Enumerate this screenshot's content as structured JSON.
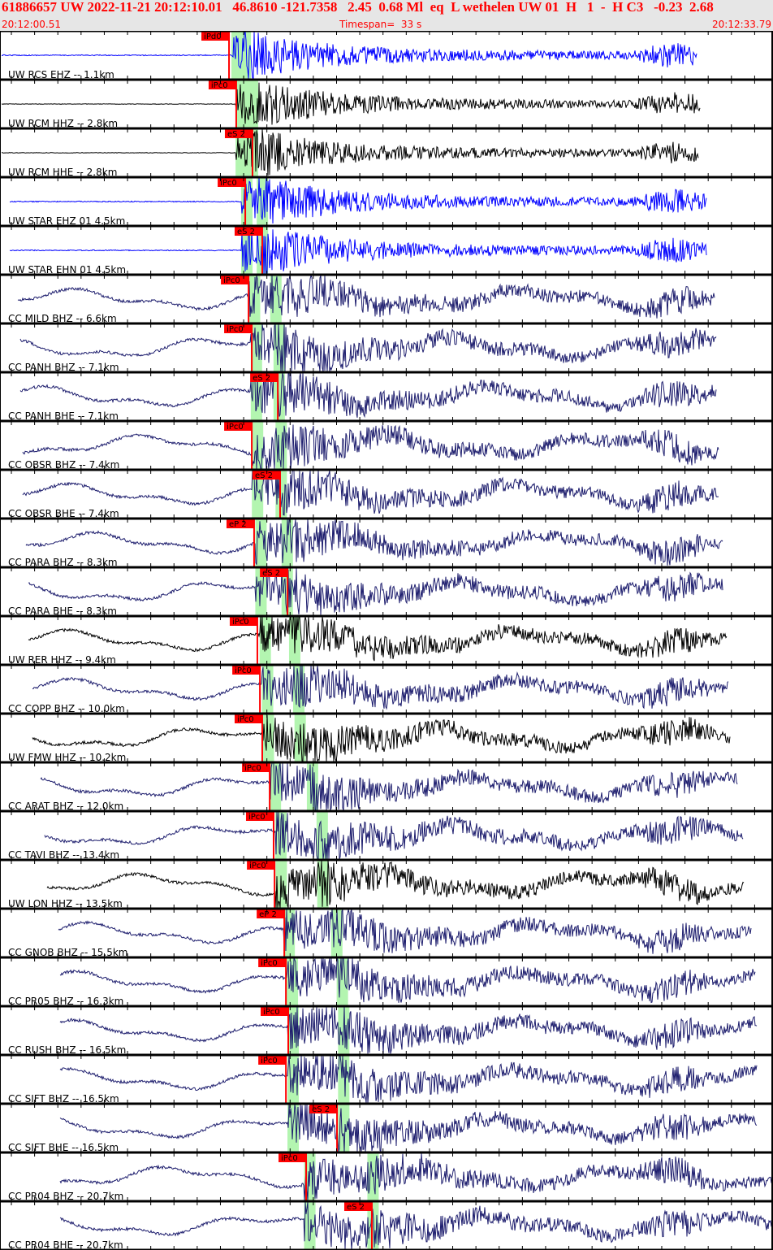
{
  "header": {
    "title": "61886657 UW 2022-11-21 20:12:10.01   46.8610 -121.7358   2.45  0.68 Ml  eq  L wethelen UW 01  H   1  -  H C3   -0.23  2.68",
    "start_time": "20:12:00.51",
    "timespan": "Timespan=  33 s",
    "end_time": "20:12:33.79"
  },
  "event": {
    "origin_time": "20:12:10.01",
    "depth_km": 2.45
  },
  "colors": {
    "pick": "#ff0000",
    "window": "#b3f5b0",
    "blue": "#0000ff",
    "black": "#000000",
    "navy": "#1e1e6e",
    "header_bg": "#e6e6e6"
  },
  "traces": [
    {
      "label": "UW RCS EHZ -- 1.1km",
      "dist": 1.1,
      "color": "blue",
      "pick": "iPd0",
      "pick_time": "20:12:10.37"
    },
    {
      "label": "UW RCM HHZ -- 2.8km",
      "dist": 2.8,
      "color": "black",
      "pick": "iPc0",
      "pick_time": "20:12:10.68"
    },
    {
      "label": "UW RCM HHE -- 2.8km",
      "dist": 2.8,
      "color": "black",
      "pick": "eS 2",
      "pick_time": "20:12:11.38"
    },
    {
      "label": "UW STAR EHZ 01 4.5km",
      "dist": 4.5,
      "color": "blue",
      "pick": "iPc0",
      "pick_time": "20:12:11.07"
    },
    {
      "label": "UW STAR EHN 01 4.5km",
      "dist": 4.5,
      "color": "blue",
      "pick": "eS 2",
      "pick_time": "20:12:11.80"
    },
    {
      "label": "CC MILD BHZ -- 6.6km",
      "dist": 6.6,
      "color": "navy",
      "pick": "iPc0",
      "pick_time": "20:12:11.21"
    },
    {
      "label": "CC PANH BHZ -- 7.1km",
      "dist": 7.1,
      "color": "navy",
      "pick": "iPc0",
      "pick_time": "20:12:11.35"
    },
    {
      "label": "CC PANH BHE -- 7.1km",
      "dist": 7.1,
      "color": "navy",
      "pick": "eS 2",
      "pick_time": "20:12:12.47"
    },
    {
      "label": "CC OBSR BHZ -- 7.4km",
      "dist": 7.4,
      "color": "navy",
      "pick": "iPc0",
      "pick_time": "20:12:11.35"
    },
    {
      "label": "CC OBSR BHE -- 7.4km",
      "dist": 7.4,
      "color": "navy",
      "pick": "eS 2",
      "pick_time": "20:12:12.57"
    },
    {
      "label": "CC PARA BHZ -- 8.3km",
      "dist": 8.3,
      "color": "navy",
      "pick": "eP 2",
      "pick_time": "20:12:11.45"
    },
    {
      "label": "CC PARA BHE -- 8.3km",
      "dist": 8.3,
      "color": "navy",
      "pick": "eS 2",
      "pick_time": "20:12:12.89"
    },
    {
      "label": "UW RER HHZ -- 9.4km",
      "dist": 9.4,
      "color": "black",
      "pick": "iPc0",
      "pick_time": "20:12:11.59"
    },
    {
      "label": "CC COPP BHZ -- 10.0km",
      "dist": 10.0,
      "color": "navy",
      "pick": "iPc0",
      "pick_time": "20:12:11.70"
    },
    {
      "label": "UW FMW HHZ -- 10.2km",
      "dist": 10.2,
      "color": "black",
      "pick": "iPc0",
      "pick_time": "20:12:11.80"
    },
    {
      "label": "CC ARAT BHZ -- 12.0km",
      "dist": 12.0,
      "color": "navy",
      "pick": "iPc0",
      "pick_time": "20:12:12.12"
    },
    {
      "label": "CC TAVI BHZ -- 13.4km",
      "dist": 13.4,
      "color": "navy",
      "pick": "iPc0",
      "pick_time": "20:12:12.29"
    },
    {
      "label": "UW LON HHZ -- 13.5km",
      "dist": 13.5,
      "color": "black",
      "pick": "iPc0",
      "pick_time": "20:12:12.33"
    },
    {
      "label": "CC GNOB BHZ -- 15.5km",
      "dist": 15.5,
      "color": "navy",
      "pick": "eP 2",
      "pick_time": "20:12:12.75"
    },
    {
      "label": "CC PR05 BHZ -- 16.3km",
      "dist": 16.3,
      "color": "navy",
      "pick": "iPc0",
      "pick_time": "20:12:12.82"
    },
    {
      "label": "CC RUSH BHZ -- 16.5km",
      "dist": 16.5,
      "color": "navy",
      "pick": "iPc0",
      "pick_time": "20:12:12.92"
    },
    {
      "label": "CC SIFT BHZ -- 16.5km",
      "dist": 16.5,
      "color": "navy",
      "pick": "iPc0",
      "pick_time": "20:12:12.82"
    },
    {
      "label": "CC SIFT BHE -- 16.5km",
      "dist": 16.5,
      "color": "navy",
      "pick": "eS 2",
      "pick_time": "20:12:15.02"
    },
    {
      "label": "CC PR04 BHZ -- 20.7km",
      "dist": 20.7,
      "color": "navy",
      "pick": "iPc0",
      "pick_time": "20:12:13.69"
    },
    {
      "label": "CC PR04 BHE -- 20.7km",
      "dist": 20.7,
      "color": "navy",
      "pick": "eS 2",
      "pick_time": "20:12:16.52"
    }
  ]
}
